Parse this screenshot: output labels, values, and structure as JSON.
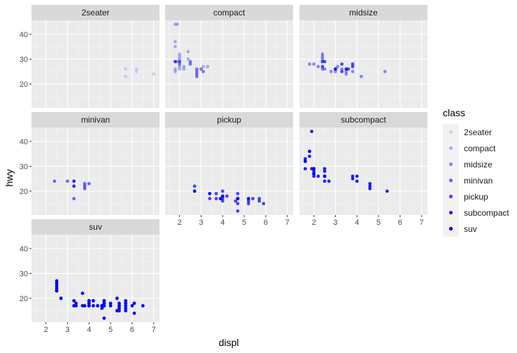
{
  "chart_data": {
    "type": "scatter",
    "facet_variable": "class",
    "x_label": "displ",
    "y_label": "hwy",
    "x_ticks": [
      2,
      3,
      4,
      5,
      6,
      7
    ],
    "y_ticks": [
      20,
      30,
      40
    ],
    "x_range": [
      1.33,
      7.27
    ],
    "y_range": [
      10.4,
      45.6
    ],
    "panel_background": "#ebebeb",
    "strip_background": "#d9d9d9",
    "point_color": "#0000ff",
    "legend": {
      "title": "class",
      "entries": [
        {
          "label": "2seater",
          "alpha": 0.14
        },
        {
          "label": "compact",
          "alpha": 0.29
        },
        {
          "label": "midsize",
          "alpha": 0.43
        },
        {
          "label": "minivan",
          "alpha": 0.57
        },
        {
          "label": "pickup",
          "alpha": 0.71
        },
        {
          "label": "subcompact",
          "alpha": 0.86
        },
        {
          "label": "suv",
          "alpha": 1.0
        }
      ]
    },
    "panels": [
      {
        "name": "2seater",
        "alpha": 0.14,
        "points": [
          [
            5.7,
            26
          ],
          [
            5.7,
            23
          ],
          [
            6.2,
            26
          ],
          [
            6.2,
            25
          ],
          [
            7.0,
            24
          ]
        ]
      },
      {
        "name": "compact",
        "alpha": 0.29,
        "points": [
          [
            1.8,
            29
          ],
          [
            1.8,
            29
          ],
          [
            2.0,
            31
          ],
          [
            2.0,
            30
          ],
          [
            2.8,
            26
          ],
          [
            2.8,
            26
          ],
          [
            3.1,
            27
          ],
          [
            1.8,
            26
          ],
          [
            1.8,
            25
          ],
          [
            2.0,
            28
          ],
          [
            2.0,
            27
          ],
          [
            2.8,
            25
          ],
          [
            2.8,
            25
          ],
          [
            3.1,
            25
          ],
          [
            3.1,
            25
          ],
          [
            2.2,
            26
          ],
          [
            2.2,
            27
          ],
          [
            2.4,
            30
          ],
          [
            2.4,
            33
          ],
          [
            3.0,
            26
          ],
          [
            3.0,
            26
          ],
          [
            3.3,
            27
          ],
          [
            1.8,
            37
          ],
          [
            1.8,
            35
          ],
          [
            1.8,
            44
          ],
          [
            1.8,
            29
          ],
          [
            1.8,
            29
          ],
          [
            2.0,
            29
          ],
          [
            2.0,
            29
          ],
          [
            2.0,
            28
          ],
          [
            2.0,
            29
          ],
          [
            2.5,
            29
          ],
          [
            2.5,
            28
          ],
          [
            2.8,
            24
          ],
          [
            2.8,
            24
          ],
          [
            1.9,
            29
          ],
          [
            2.0,
            26
          ],
          [
            2.5,
            29
          ],
          [
            2.5,
            28
          ],
          [
            2.8,
            23
          ],
          [
            2.8,
            23
          ],
          [
            1.9,
            44
          ],
          [
            2.0,
            32
          ]
        ]
      },
      {
        "name": "midsize",
        "alpha": 0.43,
        "points": [
          [
            2.4,
            31
          ],
          [
            2.4,
            32
          ],
          [
            3.1,
            27
          ],
          [
            3.5,
            26
          ],
          [
            3.6,
            26
          ],
          [
            2.4,
            27
          ],
          [
            3.0,
            26
          ],
          [
            3.3,
            25
          ],
          [
            3.3,
            25
          ],
          [
            3.3,
            26
          ],
          [
            3.3,
            28
          ],
          [
            3.8,
            27
          ],
          [
            3.8,
            25
          ],
          [
            5.3,
            25
          ],
          [
            2.5,
            29
          ],
          [
            2.5,
            26
          ],
          [
            2.5,
            29
          ],
          [
            3.0,
            26
          ],
          [
            3.5,
            26
          ],
          [
            1.8,
            28
          ],
          [
            2.2,
            27
          ],
          [
            2.4,
            30
          ],
          [
            2.4,
            27
          ],
          [
            3.0,
            26
          ],
          [
            3.3,
            28
          ],
          [
            2.4,
            29
          ],
          [
            3.0,
            25
          ],
          [
            3.5,
            25
          ],
          [
            2.0,
            28
          ],
          [
            2.4,
            26
          ],
          [
            2.4,
            29
          ],
          [
            3.5,
            26
          ],
          [
            3.8,
            28
          ],
          [
            4.2,
            23
          ],
          [
            3.5,
            24
          ],
          [
            3.6,
            26
          ],
          [
            3.8,
            27
          ],
          [
            2.8,
            25
          ],
          [
            3.8,
            28
          ],
          [
            3.0,
            26
          ]
        ]
      },
      {
        "name": "minivan",
        "alpha": 0.57,
        "points": [
          [
            2.4,
            24
          ],
          [
            3.0,
            24
          ],
          [
            3.3,
            22
          ],
          [
            3.3,
            22
          ],
          [
            3.3,
            24
          ],
          [
            3.3,
            24
          ],
          [
            3.3,
            17
          ],
          [
            3.8,
            22
          ],
          [
            3.8,
            21
          ],
          [
            3.8,
            23
          ],
          [
            4.0,
            23
          ]
        ]
      },
      {
        "name": "pickup",
        "alpha": 0.71,
        "points": [
          [
            2.7,
            20
          ],
          [
            2.7,
            20
          ],
          [
            2.7,
            22
          ],
          [
            3.4,
            17
          ],
          [
            3.4,
            19
          ],
          [
            4.0,
            18
          ],
          [
            4.7,
            17
          ],
          [
            4.7,
            17
          ],
          [
            4.7,
            19
          ],
          [
            5.2,
            16
          ],
          [
            5.2,
            17
          ],
          [
            5.7,
            17
          ],
          [
            5.9,
            15
          ],
          [
            3.7,
            17
          ],
          [
            3.7,
            19
          ],
          [
            3.9,
            17
          ],
          [
            3.9,
            17
          ],
          [
            4.7,
            17
          ],
          [
            4.7,
            17
          ],
          [
            4.7,
            15
          ],
          [
            5.2,
            17
          ],
          [
            5.2,
            15
          ],
          [
            4.0,
            20
          ],
          [
            4.0,
            17
          ],
          [
            4.6,
            16
          ],
          [
            5.4,
            17
          ],
          [
            4.2,
            18
          ],
          [
            4.7,
            12
          ],
          [
            4.7,
            17
          ],
          [
            5.7,
            16
          ],
          [
            3.4,
            19
          ],
          [
            4.0,
            18
          ],
          [
            4.0,
            16
          ]
        ]
      },
      {
        "name": "subcompact",
        "alpha": 0.86,
        "points": [
          [
            3.8,
            26
          ],
          [
            3.8,
            25
          ],
          [
            4.0,
            26
          ],
          [
            4.0,
            24
          ],
          [
            4.6,
            21
          ],
          [
            4.6,
            22
          ],
          [
            4.6,
            23
          ],
          [
            5.4,
            20
          ],
          [
            1.6,
            33
          ],
          [
            1.6,
            32
          ],
          [
            1.6,
            32
          ],
          [
            1.6,
            29
          ],
          [
            1.6,
            32
          ],
          [
            1.8,
            34
          ],
          [
            1.8,
            36
          ],
          [
            1.8,
            36
          ],
          [
            2.0,
            29
          ],
          [
            2.0,
            26
          ],
          [
            2.0,
            27
          ],
          [
            2.0,
            28
          ],
          [
            2.0,
            29
          ],
          [
            2.5,
            26
          ],
          [
            2.5,
            24
          ],
          [
            2.2,
            26
          ],
          [
            2.5,
            26
          ],
          [
            2.7,
            24
          ],
          [
            1.9,
            44
          ],
          [
            1.9,
            29
          ],
          [
            2.0,
            27
          ],
          [
            2.5,
            29
          ],
          [
            2.5,
            26
          ],
          [
            2.0,
            27
          ],
          [
            2.5,
            28
          ],
          [
            2.0,
            29
          ],
          [
            2.0,
            29
          ]
        ]
      },
      {
        "name": "suv",
        "alpha": 1.0,
        "points": [
          [
            5.3,
            20
          ],
          [
            5.3,
            15
          ],
          [
            5.3,
            20
          ],
          [
            5.7,
            17
          ],
          [
            6.0,
            17
          ],
          [
            5.7,
            19
          ],
          [
            5.7,
            15
          ],
          [
            6.5,
            17
          ],
          [
            2.5,
            27
          ],
          [
            2.5,
            25
          ],
          [
            2.5,
            26
          ],
          [
            2.5,
            24
          ],
          [
            3.3,
            19
          ],
          [
            3.8,
            17
          ],
          [
            3.7,
            17
          ],
          [
            4.0,
            19
          ],
          [
            4.7,
            19
          ],
          [
            4.7,
            18
          ],
          [
            4.7,
            12
          ],
          [
            5.7,
            18
          ],
          [
            6.1,
            18
          ],
          [
            4.0,
            17
          ],
          [
            4.2,
            19
          ],
          [
            4.4,
            17
          ],
          [
            4.6,
            17
          ],
          [
            5.4,
            18
          ],
          [
            5.4,
            15
          ],
          [
            4.0,
            19
          ],
          [
            4.0,
            17
          ],
          [
            4.6,
            17
          ],
          [
            5.0,
            17
          ],
          [
            4.2,
            17
          ],
          [
            4.6,
            16
          ],
          [
            4.7,
            17
          ],
          [
            5.4,
            17
          ],
          [
            5.4,
            16
          ],
          [
            4.0,
            18
          ],
          [
            4.0,
            17
          ],
          [
            4.6,
            17
          ],
          [
            5.0,
            18
          ],
          [
            4.0,
            19
          ],
          [
            4.7,
            17
          ],
          [
            4.7,
            19
          ],
          [
            3.7,
            22
          ],
          [
            4.7,
            19
          ],
          [
            5.7,
            18
          ],
          [
            6.1,
            14
          ],
          [
            2.7,
            20
          ],
          [
            3.4,
            18
          ],
          [
            3.4,
            17
          ],
          [
            4.0,
            18
          ],
          [
            4.0,
            19
          ],
          [
            4.7,
            17
          ],
          [
            5.7,
            16
          ],
          [
            2.5,
            23
          ],
          [
            2.5,
            23
          ],
          [
            2.7,
            20
          ],
          [
            3.3,
            17
          ],
          [
            4.0,
            17
          ],
          [
            4.7,
            18
          ],
          [
            4.7,
            17
          ],
          [
            5.4,
            17
          ],
          [
            5.4,
            17
          ]
        ]
      }
    ]
  }
}
